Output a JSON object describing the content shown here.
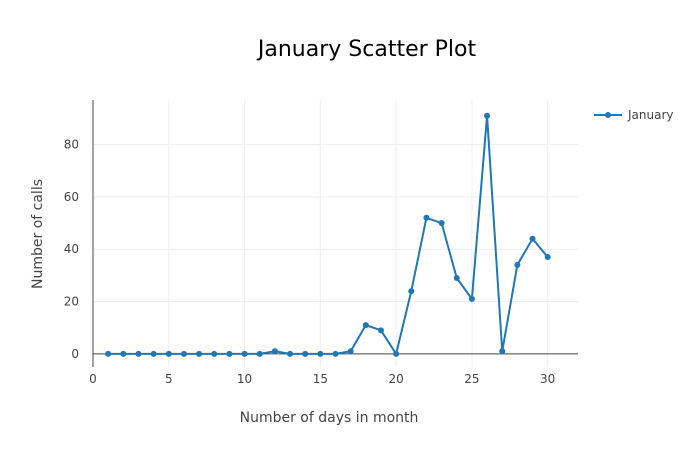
{
  "chart_data": {
    "type": "line",
    "title": "January Scatter Plot",
    "xlabel": "Number of days in month",
    "ylabel": "Number of calls",
    "xlim": [
      0,
      32
    ],
    "ylim": [
      -5,
      97
    ],
    "x_ticks": [
      0,
      5,
      10,
      15,
      20,
      25,
      30
    ],
    "y_ticks": [
      0,
      20,
      40,
      60,
      80
    ],
    "grid": true,
    "legend_position": "top-right",
    "series": [
      {
        "name": "January",
        "color": "#1f77b4",
        "mode": "lines+markers",
        "x": [
          1,
          2,
          3,
          4,
          5,
          6,
          7,
          8,
          9,
          10,
          11,
          12,
          13,
          14,
          15,
          16,
          17,
          18,
          19,
          20,
          21,
          22,
          23,
          24,
          25,
          26,
          27,
          28,
          29,
          30
        ],
        "y": [
          0,
          0,
          0,
          0,
          0,
          0,
          0,
          0,
          0,
          0,
          0,
          1,
          0,
          0,
          0,
          0,
          1,
          11,
          9,
          0,
          24,
          52,
          50,
          29,
          21,
          91,
          1,
          34,
          44,
          37
        ]
      }
    ]
  }
}
